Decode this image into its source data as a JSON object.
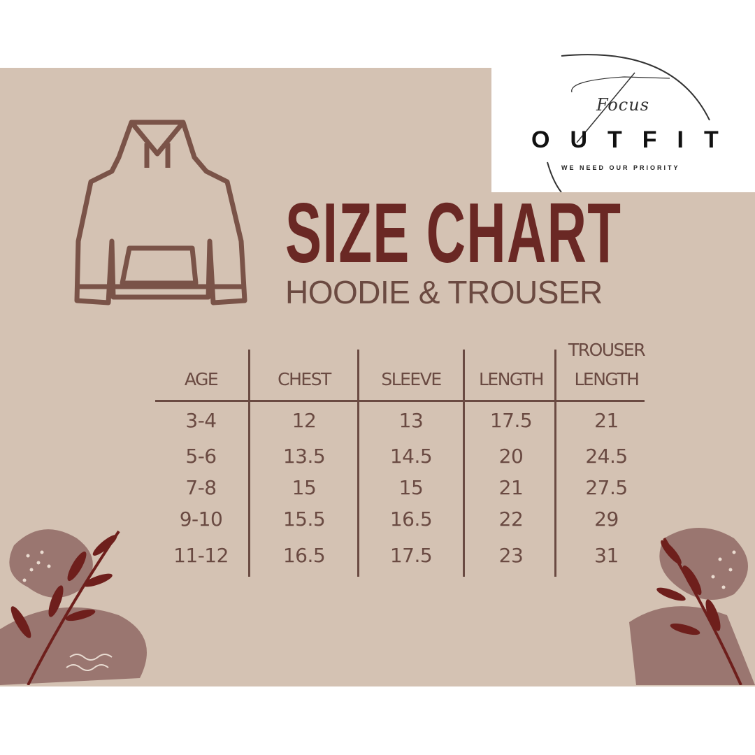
{
  "title": "SIZE CHART",
  "subtitle": "HOODIE & TROUSER",
  "colors": {
    "background": "#d4c2b3",
    "title": "#6a2824",
    "text": "#6a4a42",
    "leaf": "#6e1f1c",
    "blob": "#9a7670"
  },
  "icons": [
    "hoodie-icon",
    "leaf-branch-icon",
    "logo-icon"
  ],
  "logo": {
    "script": "Focus",
    "name": "OUTFIT",
    "tagline": "WE NEED OUR PRIORITY"
  },
  "table": {
    "headers": [
      [
        "",
        "AGE"
      ],
      [
        "",
        "CHEST"
      ],
      [
        "",
        "SLEEVE"
      ],
      [
        "",
        "LENGTH"
      ],
      [
        "TROUSER",
        "LENGTH"
      ]
    ],
    "rows": [
      [
        "3-4",
        "12",
        "13",
        "17.5",
        "21"
      ],
      [
        "5-6",
        "13.5",
        "14.5",
        "20",
        "24.5"
      ],
      [
        "7-8",
        "15",
        "15",
        "21",
        "27.5"
      ],
      [
        "9-10",
        "15.5",
        "16.5",
        "22",
        "29"
      ],
      [
        "11-12",
        "16.5",
        "17.5",
        "23",
        "31"
      ]
    ]
  }
}
